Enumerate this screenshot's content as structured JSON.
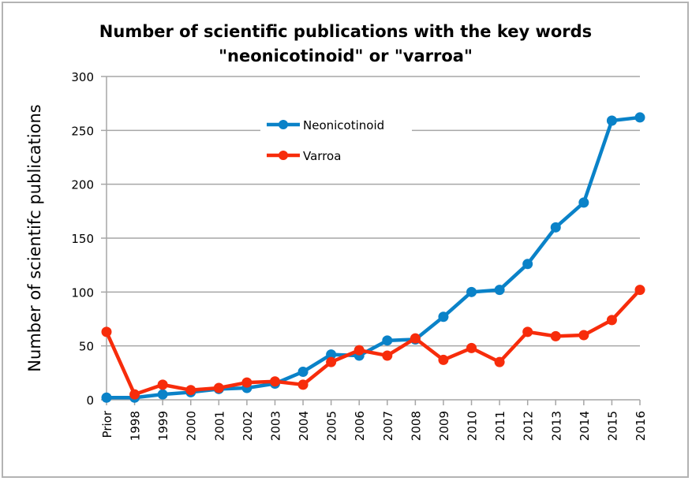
{
  "chart_data": {
    "type": "line",
    "title_lines": [
      "Number of scientific publications with the key words",
      "\"neonicotinoid\" or \"varroa\""
    ],
    "xlabel": "",
    "ylabel": "Number of scientifc publications",
    "categories": [
      "Prior",
      "1998",
      "1999",
      "2000",
      "2001",
      "2002",
      "2003",
      "2004",
      "2005",
      "2006",
      "2007",
      "2008",
      "2009",
      "2010",
      "2011",
      "2012",
      "2013",
      "2014",
      "2015",
      "2016"
    ],
    "ylim": [
      0,
      300
    ],
    "yticks": [
      0,
      50,
      100,
      150,
      200,
      250,
      300
    ],
    "grid": true,
    "legend_position": "upper-center",
    "series": [
      {
        "name": "Neonicotinoid",
        "color": "#0a82c8",
        "values": [
          2,
          2,
          5,
          7,
          10,
          11,
          15,
          26,
          42,
          41,
          55,
          56,
          77,
          100,
          102,
          126,
          160,
          183,
          259,
          262
        ]
      },
      {
        "name": "Varroa",
        "color": "#f72c0b",
        "values": [
          63,
          5,
          14,
          9,
          11,
          16,
          17,
          14,
          35,
          46,
          41,
          57,
          37,
          48,
          35,
          63,
          59,
          60,
          74,
          102
        ]
      }
    ]
  }
}
